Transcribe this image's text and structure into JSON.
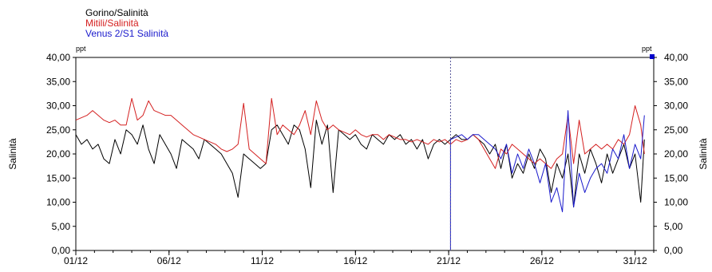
{
  "chart_data": {
    "type": "line",
    "title": "",
    "ylabel_left": "Salinità",
    "ylabel_right": "Salinità",
    "unit_left": "ppt",
    "unit_right": "ppt",
    "ylim": [
      0,
      40
    ],
    "y_ticks": [
      "0,00",
      "5,00",
      "10,00",
      "15,00",
      "20,00",
      "25,00",
      "30,00",
      "35,00",
      "40,00"
    ],
    "x_range_days": [
      1,
      32
    ],
    "x_ticks": [
      {
        "label": "01/12",
        "day": 1
      },
      {
        "label": "06/12",
        "day": 6
      },
      {
        "label": "11/12",
        "day": 11
      },
      {
        "label": "16/12",
        "day": 16
      },
      {
        "label": "21/12",
        "day": 21
      },
      {
        "label": "26/12",
        "day": 26
      },
      {
        "label": "31/12",
        "day": 31
      }
    ],
    "cursor_day": 21.1,
    "grid": false,
    "legend_position": "top-left",
    "series": [
      {
        "name": "Gorino/Salinità",
        "color": "#000000",
        "x": [
          1,
          1.3,
          1.6,
          1.9,
          2.2,
          2.5,
          2.8,
          3.1,
          3.4,
          3.7,
          4.0,
          4.3,
          4.6,
          4.9,
          5.2,
          5.5,
          5.8,
          6.1,
          6.4,
          6.7,
          7.0,
          7.3,
          7.6,
          7.9,
          8.2,
          8.5,
          8.8,
          9.1,
          9.4,
          9.7,
          10.0,
          10.3,
          10.6,
          10.9,
          11.2,
          11.5,
          11.8,
          12.1,
          12.4,
          12.7,
          13.0,
          13.3,
          13.6,
          13.9,
          14.2,
          14.5,
          14.8,
          15.1,
          15.4,
          15.7,
          16.0,
          16.3,
          16.6,
          16.9,
          17.2,
          17.5,
          17.8,
          18.1,
          18.4,
          18.7,
          19.0,
          19.3,
          19.6,
          19.9,
          20.2,
          20.5,
          20.8,
          21.1,
          21.4,
          21.7,
          22.0,
          22.3,
          22.6,
          22.9,
          23.2,
          23.5,
          23.8,
          24.1,
          24.4,
          24.7,
          25.0,
          25.3,
          25.6,
          25.9,
          26.2,
          26.5,
          26.8,
          27.1,
          27.4,
          27.7,
          28.0,
          28.3,
          28.6,
          28.9,
          29.2,
          29.5,
          29.8,
          30.1,
          30.4,
          30.7,
          31.0,
          31.3,
          31.5
        ],
        "y": [
          24,
          22,
          23,
          21,
          22,
          19,
          18,
          23,
          20,
          25,
          24,
          22,
          26,
          21,
          18,
          24,
          22,
          20,
          17,
          23,
          22,
          21,
          19,
          23,
          22,
          21,
          20,
          18,
          16,
          11,
          20,
          19,
          18,
          17,
          18,
          25,
          26,
          24,
          22,
          26,
          25,
          21,
          13,
          27,
          22,
          26,
          12,
          25,
          24,
          23,
          24,
          22,
          21,
          24,
          23,
          22,
          24,
          23,
          24,
          22,
          23,
          21,
          23,
          19,
          22,
          23,
          22,
          23,
          24,
          23,
          23,
          24,
          23,
          22,
          20,
          22,
          17,
          22,
          15,
          18,
          16,
          20,
          17,
          21,
          19,
          12,
          18,
          15,
          20,
          9,
          20,
          16,
          21,
          18,
          14,
          20,
          16,
          19,
          22,
          17,
          20,
          10,
          23
        ]
      },
      {
        "name": "Mitili/Salinità",
        "color": "#d42020",
        "x": [
          1,
          1.3,
          1.6,
          1.9,
          2.2,
          2.5,
          2.8,
          3.1,
          3.4,
          3.7,
          4.0,
          4.3,
          4.6,
          4.9,
          5.2,
          5.5,
          5.8,
          6.1,
          6.4,
          6.7,
          7.0,
          7.3,
          7.6,
          7.9,
          8.2,
          8.5,
          8.8,
          9.1,
          9.4,
          9.7,
          10.0,
          10.3,
          10.6,
          10.9,
          11.2,
          11.5,
          11.8,
          12.1,
          12.4,
          12.7,
          13.0,
          13.3,
          13.6,
          13.9,
          14.2,
          14.5,
          14.8,
          15.1,
          15.4,
          15.7,
          16.0,
          16.3,
          16.6,
          16.9,
          17.2,
          17.5,
          17.8,
          18.1,
          18.4,
          18.7,
          19.0,
          19.3,
          19.6,
          19.9,
          20.2,
          20.5,
          20.8,
          21.1,
          21.4,
          21.7,
          22.0,
          22.3,
          22.6,
          22.9,
          23.2,
          23.5,
          23.8,
          24.1,
          24.4,
          24.7,
          25.0,
          25.3,
          25.6,
          25.9,
          26.2,
          26.5,
          26.8,
          27.1,
          27.4,
          27.7,
          28.0,
          28.3,
          28.6,
          28.9,
          29.2,
          29.5,
          29.8,
          30.1,
          30.4,
          30.7,
          31.0,
          31.3,
          31.5
        ],
        "y": [
          27,
          27.5,
          28,
          29,
          28,
          27,
          26.5,
          27,
          26,
          26,
          31.5,
          27,
          28,
          31,
          29,
          28.5,
          28,
          28,
          27,
          26,
          25,
          24,
          23.5,
          23,
          22.5,
          22,
          21,
          20.5,
          21,
          22,
          30.5,
          21,
          20,
          19,
          18,
          31.5,
          24,
          26,
          25,
          24,
          26,
          29,
          24,
          31,
          27,
          25,
          26,
          25,
          24.5,
          24,
          25,
          24,
          23.5,
          24,
          24,
          23,
          24,
          23.5,
          23,
          23,
          22.5,
          23,
          22.5,
          22,
          23,
          22.5,
          23,
          22,
          23,
          22.5,
          23,
          24,
          23,
          21,
          19,
          17,
          21,
          20,
          22,
          21,
          20,
          19,
          18,
          19,
          18,
          17,
          19,
          20,
          28,
          18,
          27,
          20,
          21,
          22,
          21,
          22,
          21,
          23,
          22,
          24,
          30,
          26,
          20
        ]
      },
      {
        "name": "Venus 2/S1 Salinità",
        "color": "#1a1acc",
        "x": [
          21.1,
          21.1,
          21.4,
          21.7,
          22.0,
          22.3,
          22.6,
          22.9,
          23.2,
          23.5,
          23.8,
          24.1,
          24.4,
          24.7,
          25.0,
          25.3,
          25.6,
          25.9,
          26.2,
          26.5,
          26.8,
          27.1,
          27.4,
          27.7,
          28.0,
          28.3,
          28.6,
          28.9,
          29.2,
          29.5,
          29.8,
          30.1,
          30.4,
          30.7,
          31.0,
          31.3,
          31.5
        ],
        "y": [
          0,
          23,
          23.5,
          24,
          23,
          24,
          24,
          23,
          22,
          21,
          19,
          22,
          16,
          20,
          17,
          21,
          18,
          14,
          18,
          10,
          13,
          8,
          29,
          9,
          16,
          12,
          15,
          17,
          18,
          16,
          21,
          19,
          24,
          17,
          22,
          19,
          28
        ]
      }
    ]
  }
}
